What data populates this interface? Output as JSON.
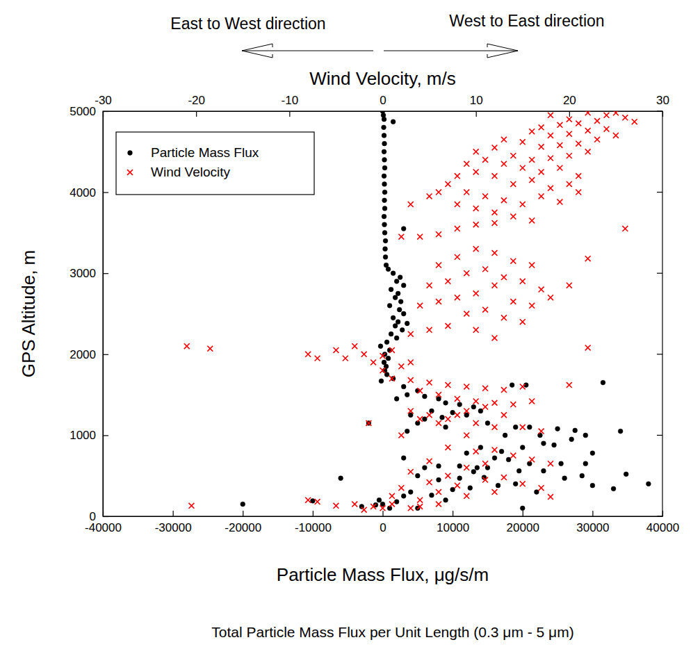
{
  "chart_data": {
    "type": "scatter",
    "x_label": "Particle Mass Flux, μg/s/m",
    "x2_label": "Wind Velocity, m/s",
    "y_label": "GPS Altitude, m",
    "annotations": [
      "East to West direction",
      "West to East direction",
      "Total Particle Mass Flux per Unit Length (0.3 μm - 5 μm)"
    ],
    "xlim": [
      -40000,
      40000
    ],
    "xticks": [
      -40000,
      -30000,
      -20000,
      -10000,
      0,
      10000,
      20000,
      30000,
      40000
    ],
    "x2lim": [
      -30,
      30
    ],
    "x2ticks": [
      -30,
      -20,
      -10,
      0,
      10,
      20,
      30
    ],
    "ylim": [
      0,
      5000
    ],
    "yticks": [
      0,
      1000,
      2000,
      3000,
      4000,
      5000
    ],
    "grid": false,
    "legend": "upper left",
    "series": [
      {
        "name": "Particle Mass Flux",
        "color": "#000000",
        "marker": "circle",
        "x": [
          0,
          100,
          200,
          1500,
          150,
          200,
          250,
          200,
          250,
          300,
          200,
          250,
          300,
          250,
          300,
          200,
          250,
          3000,
          300,
          400,
          350,
          400,
          500,
          800,
          1500,
          2500,
          2000,
          3000,
          1200,
          2200,
          1800,
          2600,
          1000,
          2400,
          3000,
          1500,
          2200,
          3500,
          1800,
          2800,
          1200,
          2000,
          600,
          -300,
          1000,
          300,
          800,
          200,
          500,
          300,
          600,
          1500,
          -200,
          3000,
          5000,
          3500,
          6000,
          2000,
          8000,
          9000,
          11000,
          13000,
          7000,
          10000,
          4000,
          6000,
          8500,
          12000,
          14000,
          18500,
          20500,
          31500,
          15000,
          5000,
          9000,
          -2000,
          3500,
          19000,
          21000,
          25000,
          27500,
          29000,
          34000,
          22500,
          27000,
          23000,
          20000,
          24500,
          30000,
          17000,
          14000,
          12000,
          16000,
          18000,
          21000,
          25500,
          29000,
          15000,
          11000,
          8000,
          6000,
          3000,
          13000,
          19500,
          23000,
          28500,
          26000,
          34800,
          38000,
          33000,
          30000,
          8000,
          11000,
          14500,
          5000,
          -6000,
          10000,
          12500,
          16500,
          19000,
          22000,
          7000,
          3000,
          9000,
          2000,
          0,
          -1000,
          -3000,
          -20000,
          -10000,
          20000,
          5000,
          1000,
          -500,
          4000,
          13500,
          17500
        ],
        "values": [
          5000,
          4950,
          4900,
          4870,
          4800,
          4700,
          4600,
          4500,
          4400,
          4300,
          4200,
          4100,
          4000,
          3900,
          3800,
          3700,
          3600,
          3550,
          3500,
          3400,
          3300,
          3200,
          3100,
          3050,
          3000,
          2950,
          2900,
          2850,
          2800,
          2750,
          2700,
          2650,
          2600,
          2550,
          2500,
          2450,
          2400,
          2380,
          2350,
          2300,
          2250,
          2200,
          2150,
          2100,
          2050,
          2000,
          1950,
          1900,
          1850,
          1800,
          1750,
          1700,
          1670,
          1600,
          1550,
          1500,
          1480,
          1450,
          1450,
          1400,
          1380,
          1350,
          1300,
          1280,
          1250,
          1200,
          1220,
          1250,
          1300,
          1620,
          1620,
          1650,
          1150,
          1150,
          1100,
          1150,
          1050,
          1100,
          1100,
          1080,
          1060,
          1000,
          1050,
          1000,
          950,
          900,
          850,
          880,
          780,
          800,
          850,
          780,
          720,
          700,
          650,
          650,
          650,
          600,
          620,
          620,
          600,
          720,
          550,
          560,
          560,
          500,
          470,
          520,
          400,
          340,
          380,
          450,
          470,
          480,
          500,
          470,
          330,
          350,
          380,
          400,
          300,
          260,
          250,
          200,
          180,
          150,
          140,
          120,
          150,
          190,
          100,
          100,
          100,
          200,
          300,
          600,
          1000
        ]
      },
      {
        "name": "Wind Velocity",
        "color": "#ff0000",
        "marker": "x",
        "axis": "x2",
        "x": [
          18,
          20,
          22,
          24,
          25,
          26,
          23,
          21,
          19,
          17,
          27,
          24,
          22,
          20,
          18,
          16,
          25,
          23,
          21,
          19,
          17,
          15,
          13,
          12,
          22,
          20,
          18,
          16,
          14,
          10,
          11,
          9,
          13,
          15,
          17,
          19,
          21,
          20,
          18,
          16,
          14,
          12,
          10,
          8,
          7,
          9,
          11,
          13,
          15,
          17,
          19,
          21,
          6,
          5,
          8,
          10,
          12,
          14,
          16,
          10,
          12,
          8,
          6,
          4,
          2,
          26,
          3,
          10,
          12,
          8,
          14,
          6,
          16,
          11,
          9,
          13,
          15,
          7,
          5,
          17,
          22,
          12,
          10,
          8,
          14,
          16,
          6,
          4,
          11,
          9,
          13,
          15,
          7,
          5,
          3,
          10,
          12,
          20,
          18,
          -21,
          -18.5,
          -8,
          -7,
          -5,
          -3,
          -2,
          0,
          1,
          -4,
          -1,
          2,
          0,
          22,
          3,
          1,
          3,
          5,
          7,
          9,
          11,
          13,
          15,
          20,
          4,
          6,
          8,
          10,
          12,
          14,
          16,
          3,
          5,
          7,
          9,
          11,
          13,
          4,
          6,
          8,
          10,
          12,
          -1.5,
          15,
          17,
          2,
          9,
          7,
          10,
          12,
          14,
          16,
          18,
          11,
          9,
          5,
          3,
          7,
          11,
          13,
          15,
          17,
          18,
          8,
          5,
          2,
          6,
          9,
          12,
          4,
          1,
          0,
          -1,
          -3,
          -5,
          -7,
          -8,
          -2,
          3,
          6,
          -20.5,
          1,
          4
        ],
        "values": [
          4950,
          4900,
          4980,
          4950,
          4980,
          4920,
          4880,
          4850,
          4830,
          4800,
          4870,
          4780,
          4760,
          4720,
          4700,
          4750,
          4700,
          4650,
          4600,
          4580,
          4560,
          4620,
          4650,
          4550,
          4500,
          4450,
          4420,
          4400,
          4450,
          4500,
          4400,
          4350,
          4350,
          4300,
          4250,
          4300,
          4200,
          4100,
          4050,
          4150,
          4100,
          4200,
          4250,
          4200,
          4100,
          4000,
          3950,
          3900,
          3850,
          3950,
          3880,
          4000,
          4000,
          3950,
          3850,
          3800,
          3750,
          3700,
          3650,
          3600,
          3620,
          3550,
          3480,
          3450,
          3450,
          3550,
          3850,
          3300,
          3250,
          3200,
          3150,
          3100,
          3100,
          3050,
          3000,
          2950,
          2900,
          2900,
          2850,
          2800,
          3180,
          2850,
          2750,
          2700,
          2650,
          2600,
          2650,
          2600,
          2550,
          2500,
          2450,
          2400,
          2350,
          2300,
          2250,
          2300,
          2200,
          2850,
          2700,
          2100,
          2070,
          2000,
          1950,
          2050,
          2100,
          2000,
          1980,
          2050,
          1950,
          1900,
          1850,
          1800,
          2080,
          1900,
          1700,
          1680,
          1650,
          1620,
          1600,
          1580,
          1560,
          1600,
          1620,
          1550,
          1500,
          1450,
          1420,
          1400,
          1380,
          1420,
          1300,
          1250,
          1200,
          1300,
          1350,
          1250,
          1200,
          1150,
          1250,
          1150,
          1100,
          1150,
          1100,
          1050,
          1000,
          1000,
          850,
          800,
          820,
          750,
          700,
          650,
          650,
          600,
          680,
          550,
          500,
          450,
          480,
          400,
          350,
          240,
          380,
          420,
          350,
          300,
          250,
          300,
          200,
          150,
          100,
          120,
          150,
          130,
          180,
          200,
          80,
          100,
          150,
          130,
          250,
          120
        ]
      }
    ]
  }
}
